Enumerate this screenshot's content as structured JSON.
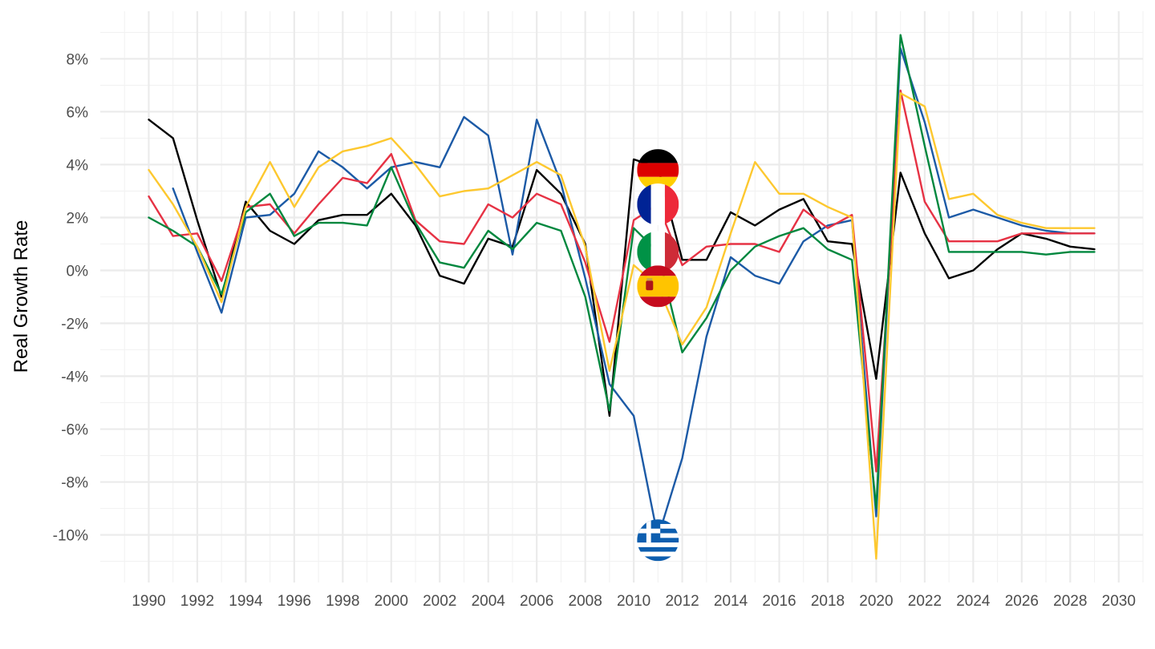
{
  "chart_data": {
    "type": "line",
    "ylabel": "Real Growth Rate",
    "xlabel": "",
    "xlim": [
      1988,
      2031
    ],
    "ylim": [
      -11.8,
      9.8
    ],
    "x_ticks": [
      1990,
      1992,
      1994,
      1996,
      1998,
      2000,
      2002,
      2004,
      2006,
      2008,
      2010,
      2012,
      2014,
      2016,
      2018,
      2020,
      2022,
      2024,
      2026,
      2028,
      2030
    ],
    "y_ticks": [
      8,
      6,
      4,
      2,
      0,
      -2,
      -4,
      -6,
      -8,
      -10
    ],
    "y_tick_labels": [
      "8%",
      "6%",
      "4%",
      "2%",
      "0%",
      "-2%",
      "-4%",
      "-6%",
      "-8%",
      "-10%"
    ],
    "grid": true,
    "legend": "none",
    "series": [
      {
        "color": "#000000",
        "flag": "germany-flag",
        "x": [
          1990,
          1991,
          1992,
          1993,
          1994,
          1995,
          1996,
          1997,
          1998,
          1999,
          2000,
          2001,
          2002,
          2003,
          2004,
          2005,
          2006,
          2007,
          2008,
          2009,
          2010,
          2011,
          2012,
          2013,
          2014,
          2015,
          2016,
          2017,
          2018,
          2019,
          2020,
          2021,
          2022,
          2023,
          2024,
          2025,
          2026,
          2027,
          2028,
          2029
        ],
        "values": [
          5.7,
          5.0,
          1.9,
          -1.0,
          2.6,
          1.5,
          1.0,
          1.9,
          2.1,
          2.1,
          2.9,
          1.7,
          -0.2,
          -0.5,
          1.2,
          0.9,
          3.8,
          2.9,
          1.0,
          -5.5,
          4.2,
          3.9,
          0.4,
          0.4,
          2.2,
          1.7,
          2.3,
          2.7,
          1.1,
          1.0,
          -4.1,
          3.7,
          1.4,
          -0.3,
          0.0,
          0.8,
          1.4,
          1.2,
          0.9,
          0.8
        ]
      },
      {
        "color": "#1c5aa6",
        "flag": "greece-flag",
        "x": [
          1991,
          1992,
          1993,
          1994,
          1995,
          1996,
          1997,
          1998,
          1999,
          2000,
          2001,
          2002,
          2003,
          2004,
          2005,
          2006,
          2007,
          2008,
          2009,
          2010,
          2011,
          2012,
          2013,
          2014,
          2015,
          2016,
          2017,
          2018,
          2019,
          2020,
          2021,
          2022,
          2023,
          2024,
          2025,
          2026,
          2027,
          2028,
          2029
        ],
        "values": [
          3.1,
          0.7,
          -1.6,
          2.0,
          2.1,
          2.9,
          4.5,
          3.9,
          3.1,
          3.9,
          4.1,
          3.9,
          5.8,
          5.1,
          0.6,
          5.7,
          3.3,
          -0.3,
          -4.3,
          -5.5,
          -10.1,
          -7.1,
          -2.5,
          0.5,
          -0.2,
          -0.5,
          1.1,
          1.7,
          1.9,
          -9.3,
          8.4,
          5.6,
          2.0,
          2.3,
          2.0,
          1.7,
          1.5,
          1.4,
          1.4
        ]
      },
      {
        "color": "#e63244",
        "flag": "france-flag",
        "x": [
          1990,
          1991,
          1992,
          1993,
          1994,
          1995,
          1996,
          1997,
          1998,
          1999,
          2000,
          2001,
          2002,
          2003,
          2004,
          2005,
          2006,
          2007,
          2008,
          2009,
          2010,
          2011,
          2012,
          2013,
          2014,
          2015,
          2016,
          2017,
          2018,
          2019,
          2020,
          2021,
          2022,
          2023,
          2024,
          2025,
          2026,
          2027,
          2028,
          2029
        ],
        "values": [
          2.8,
          1.3,
          1.4,
          -0.4,
          2.4,
          2.5,
          1.4,
          2.5,
          3.5,
          3.3,
          4.4,
          1.9,
          1.1,
          1.0,
          2.5,
          2.0,
          2.9,
          2.5,
          0.3,
          -2.7,
          1.9,
          2.5,
          0.2,
          0.9,
          1.0,
          1.0,
          0.7,
          2.3,
          1.6,
          2.1,
          -7.6,
          6.8,
          2.6,
          1.1,
          1.1,
          1.1,
          1.4,
          1.4,
          1.4,
          1.4
        ]
      },
      {
        "color": "#00873e",
        "flag": "italy-flag",
        "x": [
          1990,
          1991,
          1992,
          1993,
          1994,
          1995,
          1996,
          1997,
          1998,
          1999,
          2000,
          2001,
          2002,
          2003,
          2004,
          2005,
          2006,
          2007,
          2008,
          2009,
          2010,
          2011,
          2012,
          2013,
          2014,
          2015,
          2016,
          2017,
          2018,
          2019,
          2020,
          2021,
          2022,
          2023,
          2024,
          2025,
          2026,
          2027,
          2028,
          2029
        ],
        "values": [
          2.0,
          1.5,
          0.9,
          -0.9,
          2.2,
          2.9,
          1.3,
          1.8,
          1.8,
          1.7,
          3.9,
          1.8,
          0.3,
          0.1,
          1.5,
          0.8,
          1.8,
          1.5,
          -1.0,
          -5.3,
          1.6,
          0.7,
          -3.1,
          -1.8,
          0.0,
          0.9,
          1.3,
          1.6,
          0.8,
          0.4,
          -9.0,
          8.9,
          4.7,
          0.7,
          0.7,
          0.7,
          0.7,
          0.6,
          0.7,
          0.7
        ]
      },
      {
        "color": "#fdc82f",
        "flag": "spain-flag",
        "x": [
          1990,
          1991,
          1992,
          1993,
          1994,
          1995,
          1996,
          1997,
          1998,
          1999,
          2000,
          2001,
          2002,
          2003,
          2004,
          2005,
          2006,
          2007,
          2008,
          2009,
          2010,
          2011,
          2012,
          2013,
          2014,
          2015,
          2016,
          2017,
          2018,
          2019,
          2020,
          2021,
          2022,
          2023,
          2024,
          2025,
          2026,
          2027,
          2028,
          2029
        ],
        "values": [
          3.8,
          2.5,
          0.9,
          -1.2,
          2.4,
          4.1,
          2.4,
          3.9,
          4.5,
          4.7,
          5.0,
          4.0,
          2.8,
          3.0,
          3.1,
          3.6,
          4.1,
          3.6,
          0.9,
          -3.8,
          0.2,
          -0.6,
          -2.8,
          -1.4,
          1.4,
          4.1,
          2.9,
          2.9,
          2.4,
          2.0,
          -10.9,
          6.7,
          6.2,
          2.7,
          2.9,
          2.1,
          1.8,
          1.6,
          1.6,
          1.6
        ]
      }
    ],
    "flag_markers": [
      {
        "flag": "germany-flag",
        "x": 2011,
        "y": 3.8
      },
      {
        "flag": "france-flag",
        "x": 2011,
        "y": 2.5
      },
      {
        "flag": "italy-flag",
        "x": 2011,
        "y": 0.7
      },
      {
        "flag": "spain-flag",
        "x": 2011,
        "y": -0.6
      },
      {
        "flag": "greece-flag",
        "x": 2011,
        "y": -10.2
      }
    ]
  }
}
